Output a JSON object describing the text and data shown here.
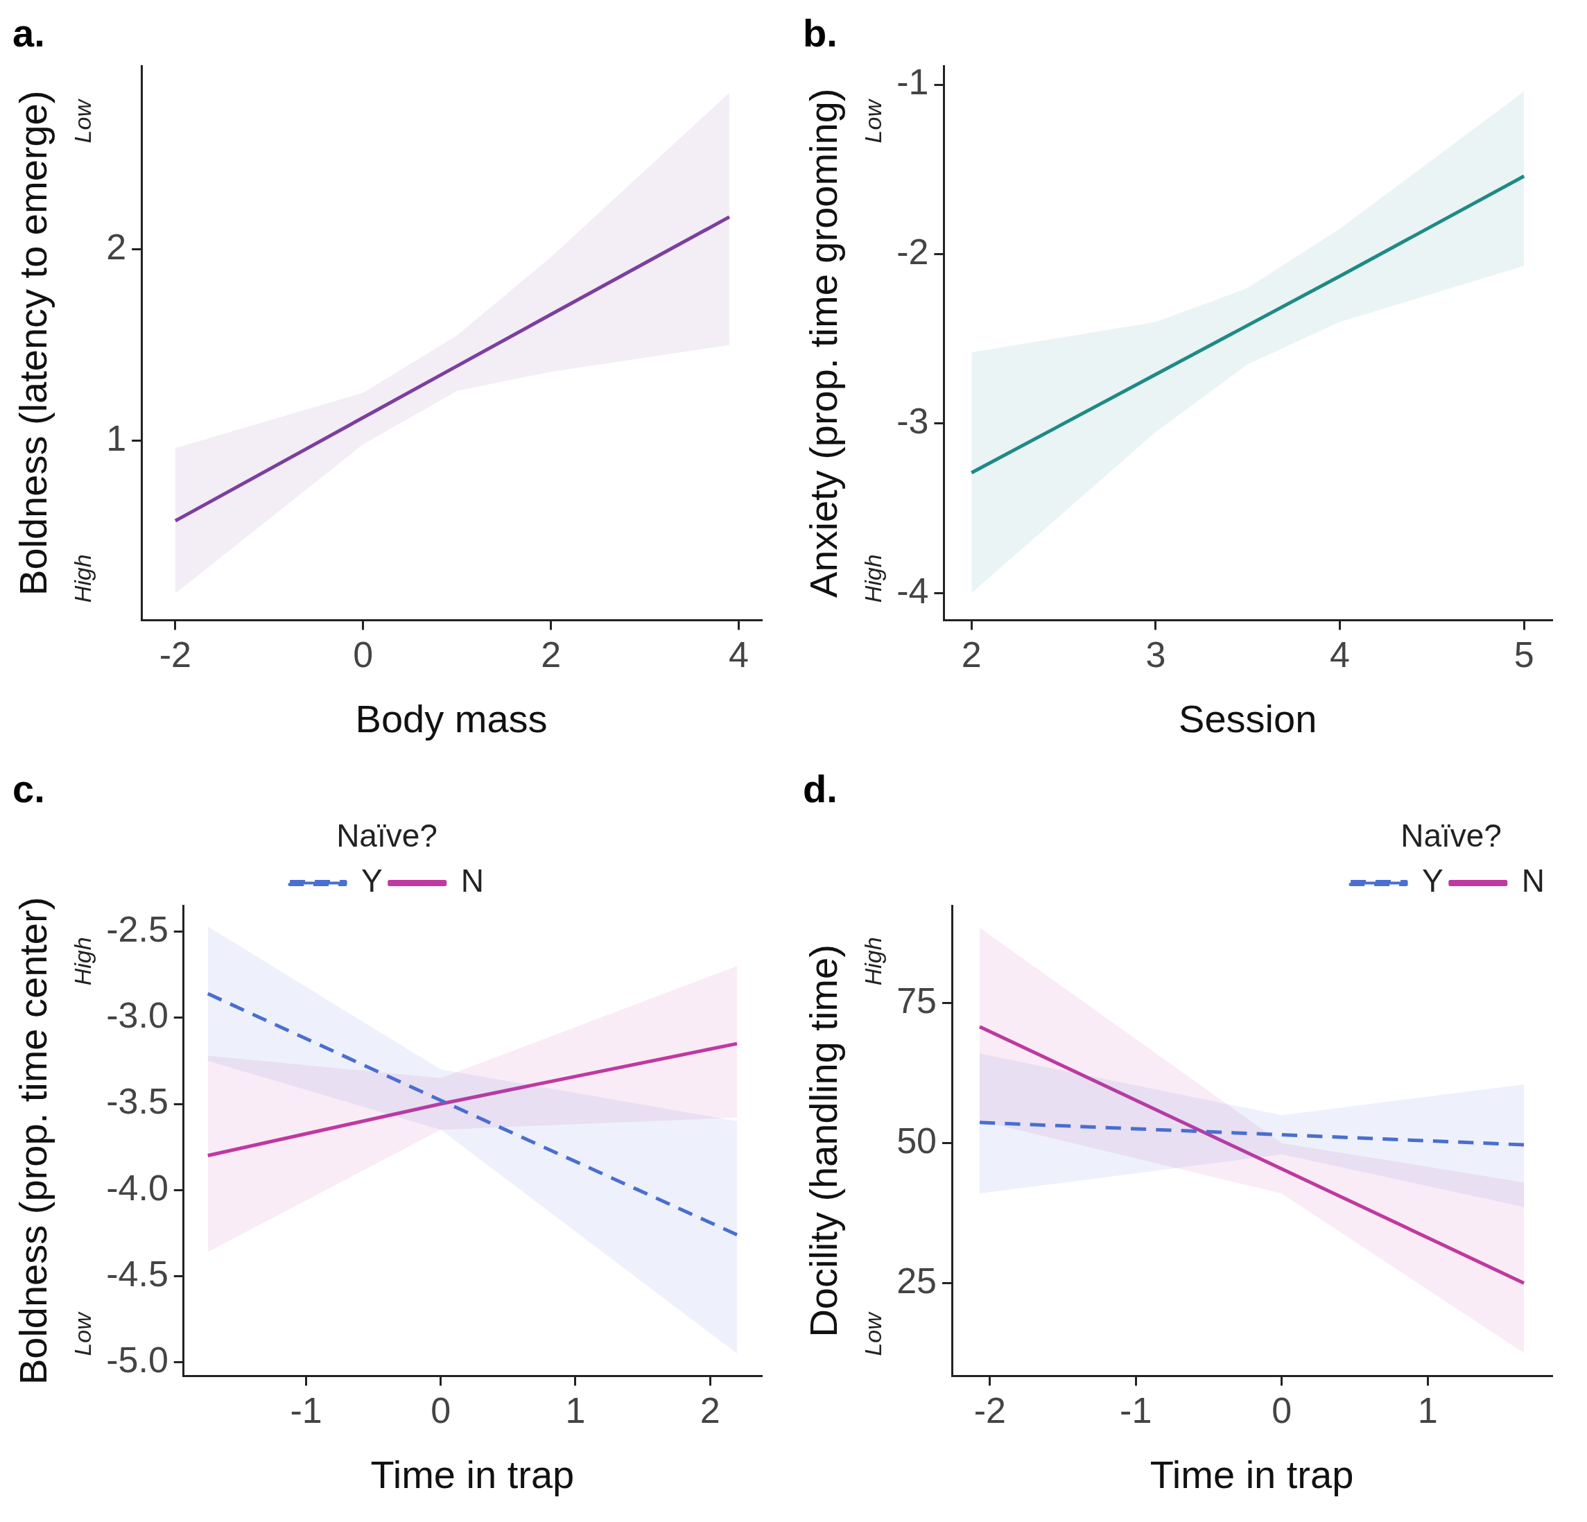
{
  "chart_data": [
    {
      "type": "line",
      "title": "a.",
      "xlabel": "Body mass",
      "ylabel": "Boldness (latency to emerge)",
      "annotations": [
        "Low",
        "High"
      ],
      "xlim": [
        -2.36,
        4.24
      ],
      "xticks": [
        -2,
        0,
        2,
        4
      ],
      "ylim": [
        0.06,
        2.96
      ],
      "yticks": [
        1,
        2
      ],
      "grid": false,
      "legend": false,
      "series": [
        {
          "color": "#7b3f9e",
          "line_style": "solid",
          "x": [
            -2,
            0,
            1,
            2,
            3.9
          ],
          "values": [
            0.58,
            1.12,
            1.39,
            1.66,
            2.17
          ],
          "upper": [
            0.96,
            1.25,
            1.55,
            1.96,
            2.82
          ],
          "lower": [
            0.2,
            0.98,
            1.26,
            1.36,
            1.5
          ]
        }
      ]
    },
    {
      "type": "line",
      "title": "b.",
      "xlabel": "Session",
      "ylabel": "Anxiety (prop. time grooming)",
      "annotations": [
        "Low",
        "High"
      ],
      "xlim": [
        1.85,
        5.15
      ],
      "xticks": [
        2,
        3,
        4,
        5
      ],
      "ylim": [
        -4.16,
        -0.89
      ],
      "yticks": [
        -4,
        -3,
        -2,
        -1
      ],
      "grid": false,
      "legend": false,
      "series": [
        {
          "color": "#1f8a85",
          "line_style": "solid",
          "x": [
            2,
            3,
            3.5,
            4,
            5
          ],
          "values": [
            -3.29,
            -2.71,
            -2.42,
            -2.13,
            -1.54
          ],
          "upper": [
            -2.58,
            -2.4,
            -2.2,
            -1.85,
            -1.04
          ],
          "lower": [
            -4.0,
            -3.05,
            -2.65,
            -2.4,
            -2.07
          ]
        }
      ]
    },
    {
      "type": "line",
      "title": "c.",
      "xlabel": "Time in trap",
      "ylabel": "Boldness (prop. time center)",
      "annotations": [
        "High",
        "Low"
      ],
      "xlim": [
        -1.91,
        2.38
      ],
      "xticks": [
        -1,
        0,
        1,
        2
      ],
      "ylim": [
        -5.08,
        -2.35
      ],
      "yticks": [
        {
          "value": -5,
          "label": "-5.0"
        },
        -4.5,
        {
          "value": -4,
          "label": "-4.0"
        },
        -3.5,
        {
          "value": -3,
          "label": "-3.0"
        },
        -2.5
      ],
      "grid": false,
      "legend": "top",
      "legend_title": "Naïve?",
      "series": [
        {
          "name": "Y",
          "color": "#4a6fd0",
          "line_style": "dashed",
          "x": [
            -1.73,
            0,
            2.2
          ],
          "values": [
            -2.86,
            -3.48,
            -4.26
          ],
          "upper": [
            -2.47,
            -3.3,
            -3.6
          ],
          "lower": [
            -3.25,
            -3.65,
            -4.95
          ]
        },
        {
          "name": "N",
          "color": "#c0399f",
          "line_style": "solid",
          "x": [
            -1.73,
            0,
            2.2
          ],
          "values": [
            -3.8,
            -3.5,
            -3.15
          ],
          "upper": [
            -3.22,
            -3.35,
            -2.7
          ],
          "lower": [
            -4.36,
            -3.65,
            -3.58
          ]
        }
      ]
    },
    {
      "type": "line",
      "title": "d.",
      "xlabel": "Time in trap",
      "ylabel": "Docility (handling time)",
      "annotations": [
        "High",
        "Low"
      ],
      "xlim": [
        -2.26,
        1.85
      ],
      "xticks": [
        -2,
        -1,
        0,
        1
      ],
      "ylim": [
        8.4,
        92.4
      ],
      "yticks": [
        25,
        50,
        75
      ],
      "grid": false,
      "legend": "top right",
      "legend_title": "Naïve?",
      "series": [
        {
          "name": "Y",
          "color": "#4a6fd0",
          "line_style": "dashed",
          "x": [
            -2.07,
            0,
            1.66
          ],
          "values": [
            53.7,
            51.5,
            49.7
          ],
          "upper": [
            66,
            55,
            60.5
          ],
          "lower": [
            41,
            48,
            38.6
          ]
        },
        {
          "name": "N",
          "color": "#c0399f",
          "line_style": "solid",
          "x": [
            -2.07,
            0,
            1.66
          ],
          "values": [
            70.8,
            45.4,
            25
          ],
          "upper": [
            88.5,
            50,
            43
          ],
          "lower": [
            54,
            41,
            12.5
          ]
        }
      ]
    }
  ]
}
